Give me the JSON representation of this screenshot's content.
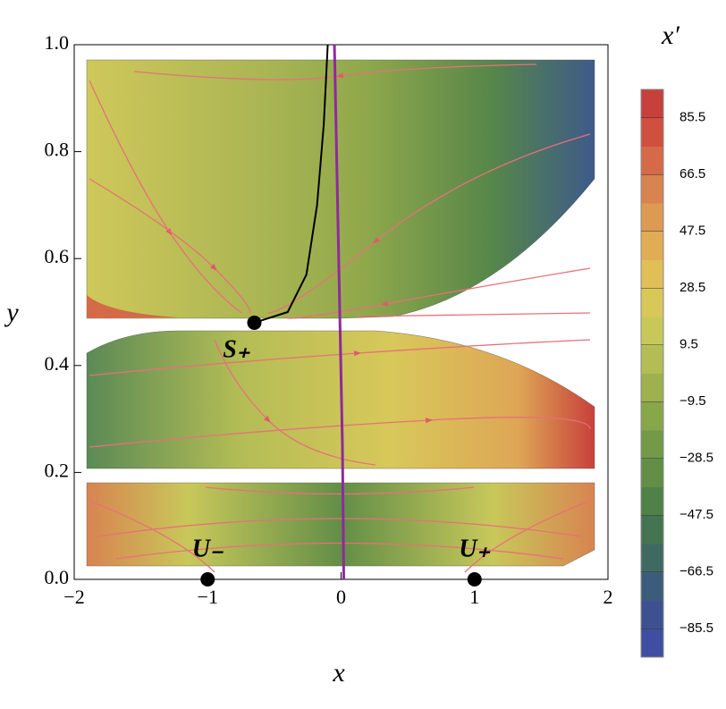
{
  "chart_data": {
    "type": "contour",
    "x_label": "x",
    "y_label": "y",
    "xlim": [
      -2,
      2
    ],
    "ylim": [
      0,
      1
    ],
    "xticks": [
      {
        "value": -2,
        "label": "−2"
      },
      {
        "value": -1,
        "label": "−1"
      },
      0,
      1,
      2
    ],
    "yticks": [
      {
        "value": 0,
        "label": "0.0"
      },
      0.2,
      0.4,
      0.6,
      0.8,
      {
        "value": 1,
        "label": "1.0"
      }
    ],
    "curves": [
      {
        "color": "#8e2a9c",
        "x": [
          -0.05,
          -0.03,
          -0.01,
          0.01,
          0.02
        ],
        "y": [
          1.0,
          0.75,
          0.5,
          0.25,
          0.0
        ]
      },
      {
        "color": "#000000",
        "x": [
          -0.1,
          -0.13,
          -0.18,
          -0.26,
          -0.4,
          -0.65
        ],
        "y": [
          1.0,
          0.85,
          0.7,
          0.57,
          0.5,
          0.48
        ]
      }
    ],
    "points": [
      {
        "label": "S₊",
        "x": -0.65,
        "y": 0.48
      },
      {
        "label": "U₋",
        "x": -1,
        "y": 0
      },
      {
        "label": "U₊",
        "x": 1,
        "y": 0
      }
    ],
    "colorbar": {
      "title": "x′",
      "clim": [
        -95,
        95
      ],
      "colors": [
        "#3f4ea0",
        "#3d5191",
        "#3c5c7c",
        "#3f6a63",
        "#447550",
        "#4f8148",
        "#628e47",
        "#749a48",
        "#88a64a",
        "#9eb04f",
        "#b3bd55",
        "#c8c85a",
        "#d8c85a",
        "#e0be58",
        "#e0ad55",
        "#dd9a53",
        "#d88450",
        "#d46a47",
        "#d0503f",
        "#c8403c"
      ],
      "ticks": [
        {
          "value": -85.5,
          "label": "−85.5"
        },
        {
          "value": -66.5,
          "label": "−66.5"
        },
        {
          "value": -47.5,
          "label": "−47.5"
        },
        {
          "value": -28.5,
          "label": "−28.5"
        },
        {
          "value": -9.5,
          "label": "−9.5"
        },
        9.5,
        28.5,
        47.5,
        66.5,
        85.5
      ]
    }
  }
}
